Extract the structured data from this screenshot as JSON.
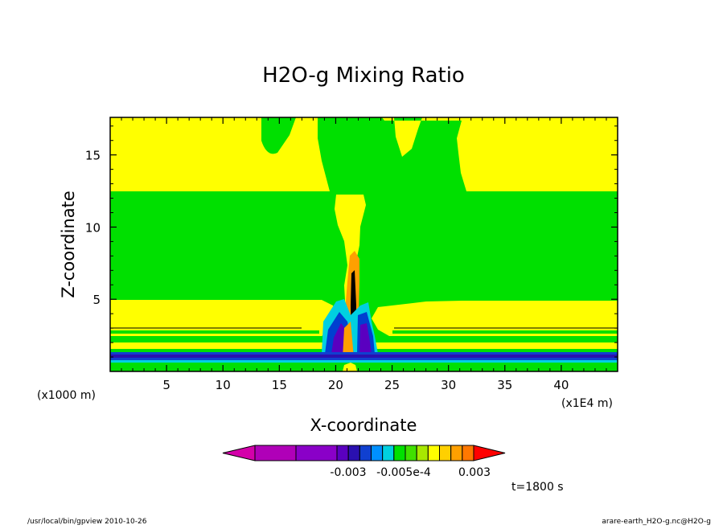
{
  "chart_data": {
    "type": "heatmap",
    "title": "H2O-g Mixing Ratio",
    "xlabel": "X-coordinate",
    "ylabel": "Z-coordinate",
    "x_unit": "(x1E4 m)",
    "y_unit": "(x1000 m)",
    "xlim": [
      0,
      45
    ],
    "ylim": [
      0,
      17.6
    ],
    "x_ticks": [
      "5",
      "10",
      "15",
      "20",
      "25",
      "30",
      "35",
      "40"
    ],
    "x_tick_values": [
      5,
      10,
      15,
      20,
      25,
      30,
      35,
      40
    ],
    "y_ticks": [
      "5",
      "10",
      "15"
    ],
    "y_tick_values": [
      5,
      10,
      15
    ],
    "colorbar": {
      "labels": [
        "-0.003",
        "-0.005e-4",
        "0.003"
      ],
      "colors": [
        "#d400aa",
        "#b000b8",
        "#8a00c8",
        "#5a00c0",
        "#2a10b0",
        "#1040d0",
        "#0090ff",
        "#00d0e0",
        "#00e000",
        "#40e000",
        "#a8e800",
        "#ffff00",
        "#ffd000",
        "#ffa000",
        "#ff7800",
        "#ff0000"
      ]
    },
    "annotation": "t=1800 s",
    "fill_colors": {
      "background": "#00e000",
      "positive": "#ffff00",
      "strong": "#ffa000",
      "negative": "#2a10b0",
      "core": "#000000"
    }
  },
  "footer": {
    "left": "/usr/local/bin/gpview  2010-10-26",
    "right": "arare-earth_H2O-g.nc@H2O-g"
  }
}
